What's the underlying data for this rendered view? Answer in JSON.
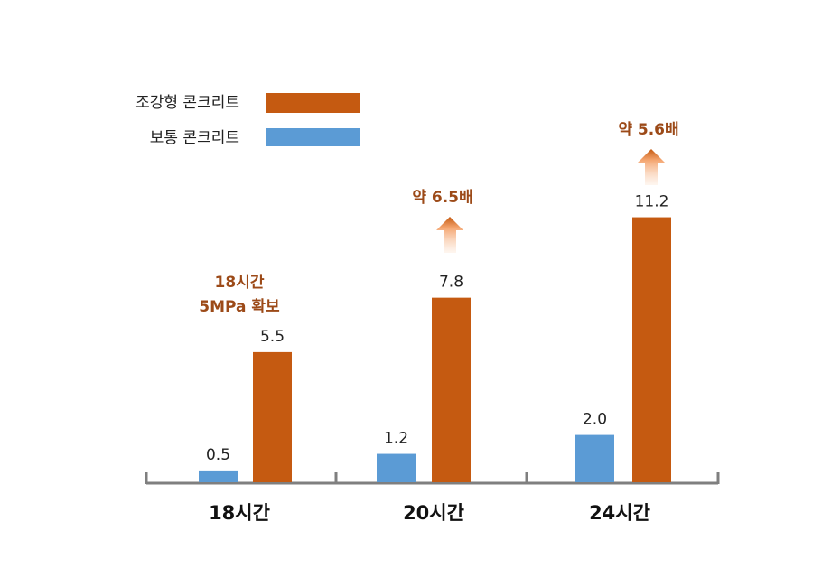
{
  "chart_data": {
    "type": "bar",
    "title": "",
    "xlabel": "",
    "ylabel": "",
    "categories": [
      "18시간",
      "20시간",
      "24시간"
    ],
    "series": [
      {
        "name": "보통 콘크리트",
        "color": "#5b9bd5",
        "values": [
          0.5,
          1.2,
          2.0
        ],
        "labels": [
          "0.5",
          "1.2",
          "2.0"
        ]
      },
      {
        "name": "조강형 콘크리트",
        "color": "#c55a11",
        "values": [
          5.5,
          7.8,
          11.2
        ],
        "labels": [
          "5.5",
          "7.8",
          "11.2"
        ]
      }
    ],
    "ylim": [
      0,
      12
    ],
    "grid": false,
    "legend": {
      "placement": "top-left",
      "entries": [
        "조강형 콘크리트",
        "보통 콘크리트"
      ]
    },
    "annotations": [
      {
        "category": "18시간",
        "lines": [
          "18시간",
          "5MPa 확보"
        ],
        "arrow": false
      },
      {
        "category": "20시간",
        "lines": [
          "약 6.5배"
        ],
        "arrow": true
      },
      {
        "category": "24시간",
        "lines": [
          "약 5.6배"
        ],
        "arrow": true
      }
    ]
  }
}
